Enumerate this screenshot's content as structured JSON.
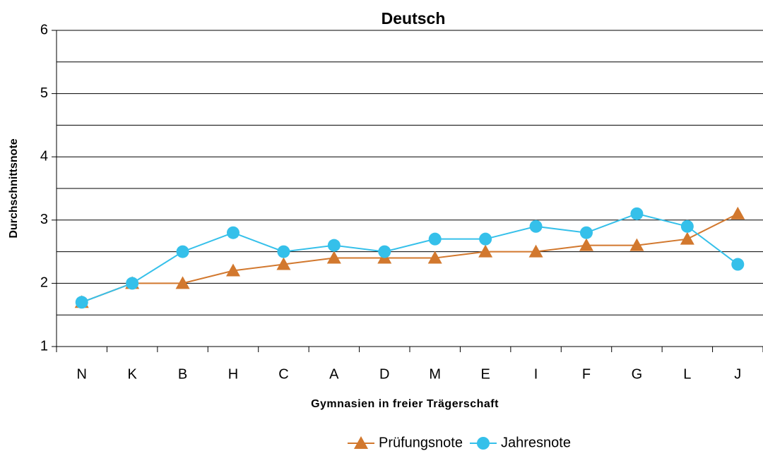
{
  "chart_data": {
    "type": "line",
    "title": "Deutsch",
    "x_label": "Gymnasien in freier Trägerschaft",
    "y_label": "Durchschnittsnote",
    "categories": [
      "N",
      "K",
      "B",
      "H",
      "C",
      "A",
      "D",
      "M",
      "E",
      "I",
      "F",
      "G",
      "L",
      "J"
    ],
    "series": [
      {
        "name": "Prüfungsnote",
        "color": "#d2782e",
        "marker": "triangle",
        "values": [
          1.7,
          2.0,
          2.0,
          2.2,
          2.3,
          2.4,
          2.4,
          2.4,
          2.5,
          2.5,
          2.6,
          2.6,
          2.7,
          3.1
        ]
      },
      {
        "name": "Jahresnote",
        "color": "#35c0ea",
        "marker": "circle",
        "values": [
          1.7,
          2.0,
          2.5,
          2.8,
          2.5,
          2.6,
          2.5,
          2.7,
          2.7,
          2.9,
          2.8,
          3.1,
          2.9,
          2.3
        ]
      }
    ],
    "ylim": [
      1,
      6
    ],
    "yticks": [
      1,
      2,
      3,
      4,
      5,
      6
    ],
    "minor_gridlines": [
      1.5,
      2.5,
      3.5,
      4.5,
      5.5
    ],
    "grid": true,
    "legend": "bottom"
  }
}
